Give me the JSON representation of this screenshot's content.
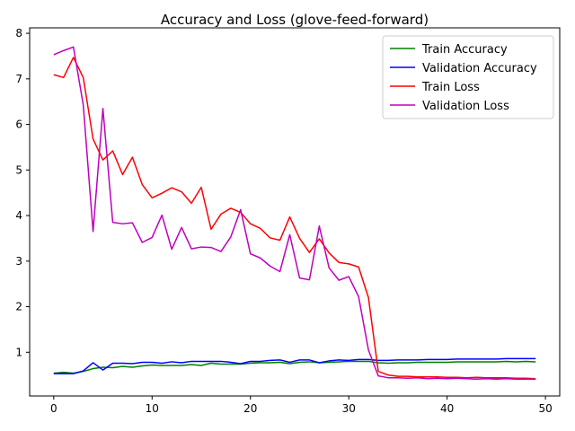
{
  "chart_data": {
    "type": "line",
    "title": "Accuracy and Loss (glove-feed-forward)",
    "xlabel": "",
    "ylabel": "",
    "xlim": [
      -2.45,
      51.45
    ],
    "ylim": [
      0.04,
      8.12
    ],
    "xticks": [
      0,
      10,
      20,
      30,
      40,
      50
    ],
    "yticks": [
      1,
      2,
      3,
      4,
      5,
      6,
      7,
      8
    ],
    "grid": false,
    "legend_position": "top-right",
    "x": [
      0,
      1,
      2,
      3,
      4,
      5,
      6,
      7,
      8,
      9,
      10,
      11,
      12,
      13,
      14,
      15,
      16,
      17,
      18,
      19,
      20,
      21,
      22,
      23,
      24,
      25,
      26,
      27,
      28,
      29,
      30,
      31,
      32,
      33,
      34,
      35,
      36,
      37,
      38,
      39,
      40,
      41,
      42,
      43,
      44,
      45,
      46,
      47,
      48,
      49
    ],
    "series": [
      {
        "name": "Train Accuracy",
        "color": "#008000",
        "values": [
          0.54,
          0.56,
          0.54,
          0.58,
          0.64,
          0.67,
          0.66,
          0.69,
          0.67,
          0.7,
          0.72,
          0.71,
          0.71,
          0.71,
          0.73,
          0.71,
          0.76,
          0.74,
          0.74,
          0.74,
          0.76,
          0.77,
          0.77,
          0.78,
          0.75,
          0.78,
          0.79,
          0.77,
          0.78,
          0.79,
          0.8,
          0.8,
          0.8,
          0.77,
          0.76,
          0.77,
          0.77,
          0.78,
          0.78,
          0.78,
          0.78,
          0.79,
          0.79,
          0.79,
          0.79,
          0.79,
          0.8,
          0.79,
          0.8,
          0.79
        ]
      },
      {
        "name": "Validation Accuracy",
        "color": "#0000ff",
        "values": [
          0.53,
          0.53,
          0.53,
          0.59,
          0.77,
          0.61,
          0.76,
          0.76,
          0.75,
          0.78,
          0.78,
          0.76,
          0.79,
          0.77,
          0.8,
          0.8,
          0.8,
          0.8,
          0.78,
          0.75,
          0.8,
          0.8,
          0.82,
          0.83,
          0.78,
          0.83,
          0.83,
          0.77,
          0.81,
          0.83,
          0.82,
          0.84,
          0.84,
          0.82,
          0.82,
          0.83,
          0.83,
          0.83,
          0.84,
          0.84,
          0.84,
          0.85,
          0.85,
          0.85,
          0.85,
          0.85,
          0.86,
          0.86,
          0.86,
          0.86
        ]
      },
      {
        "name": "Train Loss",
        "color": "#ff0000",
        "values": [
          7.09,
          7.03,
          7.47,
          7.03,
          5.68,
          5.22,
          5.42,
          4.9,
          5.28,
          4.68,
          4.39,
          4.49,
          4.61,
          4.52,
          4.27,
          4.62,
          3.7,
          4.03,
          4.16,
          4.07,
          3.82,
          3.72,
          3.51,
          3.46,
          3.97,
          3.5,
          3.19,
          3.49,
          3.18,
          2.97,
          2.94,
          2.87,
          2.2,
          0.58,
          0.5,
          0.47,
          0.47,
          0.46,
          0.46,
          0.46,
          0.45,
          0.45,
          0.44,
          0.45,
          0.44,
          0.44,
          0.44,
          0.43,
          0.43,
          0.42
        ]
      },
      {
        "name": "Validation Loss",
        "color": "#bf00bf",
        "values": [
          7.53,
          7.62,
          7.7,
          6.43,
          3.65,
          6.35,
          3.85,
          3.82,
          3.84,
          3.41,
          3.52,
          4.01,
          3.26,
          3.74,
          3.27,
          3.31,
          3.3,
          3.21,
          3.53,
          4.13,
          3.16,
          3.07,
          2.89,
          2.77,
          3.58,
          2.63,
          2.59,
          3.77,
          2.85,
          2.58,
          2.66,
          2.22,
          1.05,
          0.48,
          0.44,
          0.44,
          0.43,
          0.44,
          0.42,
          0.43,
          0.42,
          0.43,
          0.42,
          0.41,
          0.42,
          0.41,
          0.42,
          0.41,
          0.41,
          0.41
        ]
      }
    ]
  }
}
